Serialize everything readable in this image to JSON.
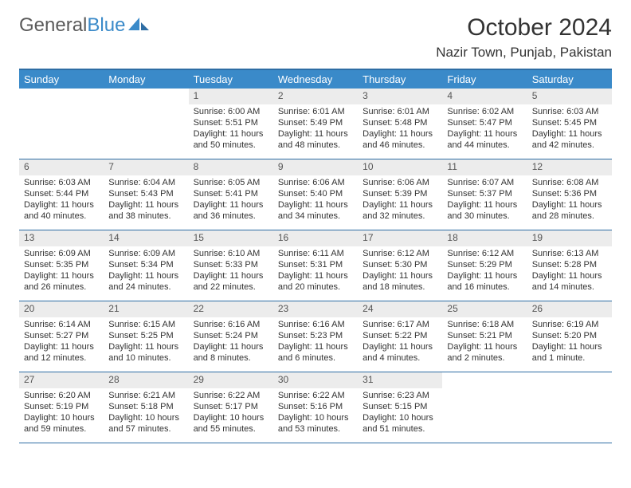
{
  "logo": {
    "text_gray": "General",
    "text_blue": "Blue"
  },
  "title": "October 2024",
  "location": "Nazir Town, Punjab, Pakistan",
  "colors": {
    "header_bg": "#3a8ac9",
    "header_border": "#2e6da4",
    "daynum_bg": "#ececec",
    "text": "#333333",
    "logo_gray": "#5a5a5a",
    "logo_blue": "#3a8ac9",
    "background": "#ffffff"
  },
  "day_names": [
    "Sunday",
    "Monday",
    "Tuesday",
    "Wednesday",
    "Thursday",
    "Friday",
    "Saturday"
  ],
  "weeks": [
    [
      {
        "day": "",
        "sunrise": "",
        "sunset": "",
        "daylight": ""
      },
      {
        "day": "",
        "sunrise": "",
        "sunset": "",
        "daylight": ""
      },
      {
        "day": "1",
        "sunrise": "Sunrise: 6:00 AM",
        "sunset": "Sunset: 5:51 PM",
        "daylight": "Daylight: 11 hours and 50 minutes."
      },
      {
        "day": "2",
        "sunrise": "Sunrise: 6:01 AM",
        "sunset": "Sunset: 5:49 PM",
        "daylight": "Daylight: 11 hours and 48 minutes."
      },
      {
        "day": "3",
        "sunrise": "Sunrise: 6:01 AM",
        "sunset": "Sunset: 5:48 PM",
        "daylight": "Daylight: 11 hours and 46 minutes."
      },
      {
        "day": "4",
        "sunrise": "Sunrise: 6:02 AM",
        "sunset": "Sunset: 5:47 PM",
        "daylight": "Daylight: 11 hours and 44 minutes."
      },
      {
        "day": "5",
        "sunrise": "Sunrise: 6:03 AM",
        "sunset": "Sunset: 5:45 PM",
        "daylight": "Daylight: 11 hours and 42 minutes."
      }
    ],
    [
      {
        "day": "6",
        "sunrise": "Sunrise: 6:03 AM",
        "sunset": "Sunset: 5:44 PM",
        "daylight": "Daylight: 11 hours and 40 minutes."
      },
      {
        "day": "7",
        "sunrise": "Sunrise: 6:04 AM",
        "sunset": "Sunset: 5:43 PM",
        "daylight": "Daylight: 11 hours and 38 minutes."
      },
      {
        "day": "8",
        "sunrise": "Sunrise: 6:05 AM",
        "sunset": "Sunset: 5:41 PM",
        "daylight": "Daylight: 11 hours and 36 minutes."
      },
      {
        "day": "9",
        "sunrise": "Sunrise: 6:06 AM",
        "sunset": "Sunset: 5:40 PM",
        "daylight": "Daylight: 11 hours and 34 minutes."
      },
      {
        "day": "10",
        "sunrise": "Sunrise: 6:06 AM",
        "sunset": "Sunset: 5:39 PM",
        "daylight": "Daylight: 11 hours and 32 minutes."
      },
      {
        "day": "11",
        "sunrise": "Sunrise: 6:07 AM",
        "sunset": "Sunset: 5:37 PM",
        "daylight": "Daylight: 11 hours and 30 minutes."
      },
      {
        "day": "12",
        "sunrise": "Sunrise: 6:08 AM",
        "sunset": "Sunset: 5:36 PM",
        "daylight": "Daylight: 11 hours and 28 minutes."
      }
    ],
    [
      {
        "day": "13",
        "sunrise": "Sunrise: 6:09 AM",
        "sunset": "Sunset: 5:35 PM",
        "daylight": "Daylight: 11 hours and 26 minutes."
      },
      {
        "day": "14",
        "sunrise": "Sunrise: 6:09 AM",
        "sunset": "Sunset: 5:34 PM",
        "daylight": "Daylight: 11 hours and 24 minutes."
      },
      {
        "day": "15",
        "sunrise": "Sunrise: 6:10 AM",
        "sunset": "Sunset: 5:33 PM",
        "daylight": "Daylight: 11 hours and 22 minutes."
      },
      {
        "day": "16",
        "sunrise": "Sunrise: 6:11 AM",
        "sunset": "Sunset: 5:31 PM",
        "daylight": "Daylight: 11 hours and 20 minutes."
      },
      {
        "day": "17",
        "sunrise": "Sunrise: 6:12 AM",
        "sunset": "Sunset: 5:30 PM",
        "daylight": "Daylight: 11 hours and 18 minutes."
      },
      {
        "day": "18",
        "sunrise": "Sunrise: 6:12 AM",
        "sunset": "Sunset: 5:29 PM",
        "daylight": "Daylight: 11 hours and 16 minutes."
      },
      {
        "day": "19",
        "sunrise": "Sunrise: 6:13 AM",
        "sunset": "Sunset: 5:28 PM",
        "daylight": "Daylight: 11 hours and 14 minutes."
      }
    ],
    [
      {
        "day": "20",
        "sunrise": "Sunrise: 6:14 AM",
        "sunset": "Sunset: 5:27 PM",
        "daylight": "Daylight: 11 hours and 12 minutes."
      },
      {
        "day": "21",
        "sunrise": "Sunrise: 6:15 AM",
        "sunset": "Sunset: 5:25 PM",
        "daylight": "Daylight: 11 hours and 10 minutes."
      },
      {
        "day": "22",
        "sunrise": "Sunrise: 6:16 AM",
        "sunset": "Sunset: 5:24 PM",
        "daylight": "Daylight: 11 hours and 8 minutes."
      },
      {
        "day": "23",
        "sunrise": "Sunrise: 6:16 AM",
        "sunset": "Sunset: 5:23 PM",
        "daylight": "Daylight: 11 hours and 6 minutes."
      },
      {
        "day": "24",
        "sunrise": "Sunrise: 6:17 AM",
        "sunset": "Sunset: 5:22 PM",
        "daylight": "Daylight: 11 hours and 4 minutes."
      },
      {
        "day": "25",
        "sunrise": "Sunrise: 6:18 AM",
        "sunset": "Sunset: 5:21 PM",
        "daylight": "Daylight: 11 hours and 2 minutes."
      },
      {
        "day": "26",
        "sunrise": "Sunrise: 6:19 AM",
        "sunset": "Sunset: 5:20 PM",
        "daylight": "Daylight: 11 hours and 1 minute."
      }
    ],
    [
      {
        "day": "27",
        "sunrise": "Sunrise: 6:20 AM",
        "sunset": "Sunset: 5:19 PM",
        "daylight": "Daylight: 10 hours and 59 minutes."
      },
      {
        "day": "28",
        "sunrise": "Sunrise: 6:21 AM",
        "sunset": "Sunset: 5:18 PM",
        "daylight": "Daylight: 10 hours and 57 minutes."
      },
      {
        "day": "29",
        "sunrise": "Sunrise: 6:22 AM",
        "sunset": "Sunset: 5:17 PM",
        "daylight": "Daylight: 10 hours and 55 minutes."
      },
      {
        "day": "30",
        "sunrise": "Sunrise: 6:22 AM",
        "sunset": "Sunset: 5:16 PM",
        "daylight": "Daylight: 10 hours and 53 minutes."
      },
      {
        "day": "31",
        "sunrise": "Sunrise: 6:23 AM",
        "sunset": "Sunset: 5:15 PM",
        "daylight": "Daylight: 10 hours and 51 minutes."
      },
      {
        "day": "",
        "sunrise": "",
        "sunset": "",
        "daylight": ""
      },
      {
        "day": "",
        "sunrise": "",
        "sunset": "",
        "daylight": ""
      }
    ]
  ]
}
